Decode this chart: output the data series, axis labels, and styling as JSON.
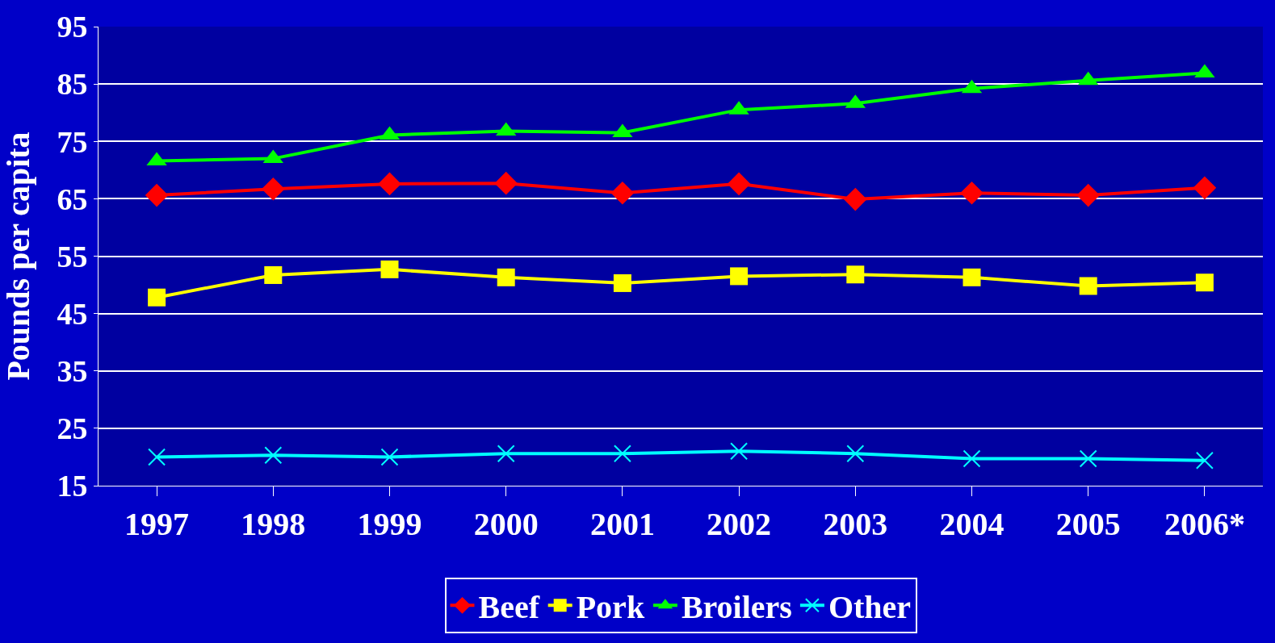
{
  "chart_data": {
    "type": "line",
    "ylabel": "Pounds per capita",
    "categories": [
      "1997",
      "1998",
      "1999",
      "2000",
      "2001",
      "2002",
      "2003",
      "2004",
      "2005",
      "2006*"
    ],
    "series": [
      {
        "name": "Beef",
        "color": "#ff0000",
        "marker": "diamond",
        "values": [
          65.6,
          66.7,
          67.6,
          67.7,
          66.0,
          67.6,
          64.9,
          66.0,
          65.6,
          66.9
        ]
      },
      {
        "name": "Pork",
        "color": "#ffff00",
        "marker": "square",
        "values": [
          47.8,
          51.7,
          52.7,
          51.3,
          50.3,
          51.5,
          51.8,
          51.3,
          49.8,
          50.4
        ]
      },
      {
        "name": "Broilers",
        "color": "#00ff00",
        "marker": "triangle",
        "values": [
          71.6,
          72.0,
          76.1,
          76.8,
          76.5,
          80.5,
          81.6,
          84.2,
          85.6,
          86.9
        ]
      },
      {
        "name": "Other",
        "color": "#00ffff",
        "marker": "cross",
        "values": [
          20.0,
          20.3,
          20.0,
          20.6,
          20.6,
          21.0,
          20.6,
          19.7,
          19.7,
          19.4
        ]
      }
    ],
    "ylim": [
      15,
      95
    ],
    "yticks": [
      15,
      25,
      35,
      45,
      55,
      65,
      75,
      85,
      95
    ],
    "grid": "y",
    "legend": "bottom",
    "line_style": "solid"
  }
}
